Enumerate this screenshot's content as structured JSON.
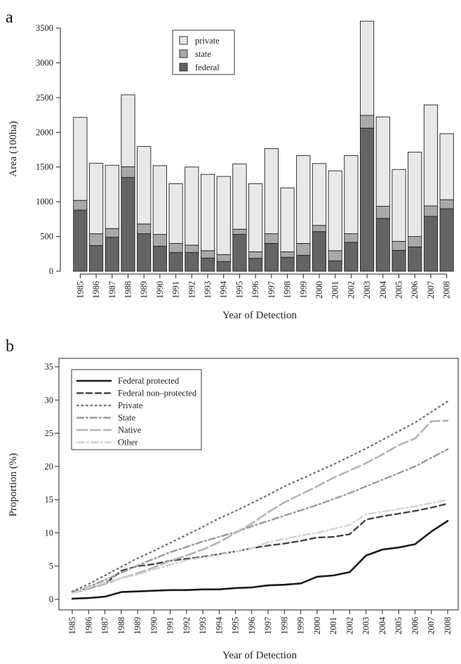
{
  "chart_data": [
    {
      "type": "bar",
      "stacked": true,
      "panel_label": "a",
      "xlabel": "Year of Detection",
      "ylabel": "Area (100ha)",
      "ylim": [
        0,
        3600
      ],
      "yticks": [
        0,
        500,
        1000,
        1500,
        2000,
        2500,
        3000,
        3500
      ],
      "categories": [
        "1985",
        "1986",
        "1987",
        "1988",
        "1989",
        "1990",
        "1991",
        "1992",
        "1993",
        "1994",
        "1995",
        "1996",
        "1997",
        "1998",
        "1999",
        "2000",
        "2001",
        "2002",
        "2003",
        "2004",
        "2005",
        "2006",
        "2007",
        "2008"
      ],
      "series": [
        {
          "name": "federal",
          "color": "#646464",
          "values": [
            880,
            370,
            490,
            1350,
            540,
            360,
            270,
            270,
            190,
            140,
            530,
            185,
            400,
            200,
            230,
            570,
            150,
            415,
            2060,
            760,
            300,
            350,
            790,
            900
          ]
        },
        {
          "name": "state",
          "color": "#a9a9a9",
          "values": [
            140,
            170,
            125,
            155,
            140,
            170,
            130,
            105,
            105,
            100,
            75,
            95,
            140,
            80,
            170,
            90,
            145,
            125,
            185,
            175,
            130,
            150,
            150,
            130
          ]
        },
        {
          "name": "private",
          "color": "#e8e8e8",
          "values": [
            1195,
            1015,
            910,
            1035,
            1115,
            990,
            860,
            1125,
            1100,
            1125,
            940,
            980,
            1225,
            920,
            1265,
            890,
            1150,
            1125,
            1355,
            1285,
            1035,
            1215,
            1455,
            950
          ]
        }
      ],
      "legend": {
        "placement": "top-center",
        "order": [
          "private",
          "state",
          "federal"
        ]
      }
    },
    {
      "type": "line",
      "panel_label": "b",
      "xlabel": "Year of Detection",
      "ylabel": "Proportion (%)",
      "ylim": [
        0,
        35
      ],
      "yticks": [
        0,
        5,
        10,
        15,
        20,
        25,
        30,
        35
      ],
      "x": [
        "1985",
        "1986",
        "1987",
        "1988",
        "1989",
        "1990",
        "1991",
        "1992",
        "1993",
        "1994",
        "1995",
        "1996",
        "1997",
        "1998",
        "1999",
        "2000",
        "2001",
        "2002",
        "2003",
        "2004",
        "2005",
        "2006",
        "2007",
        "2008"
      ],
      "series": [
        {
          "name": "Federal protected",
          "color": "#1a1a1a",
          "dash": "",
          "width": 2.6,
          "values": [
            0.1,
            0.2,
            0.4,
            1.1,
            1.2,
            1.3,
            1.4,
            1.4,
            1.5,
            1.5,
            1.7,
            1.8,
            2.1,
            2.2,
            2.4,
            3.4,
            3.6,
            4.1,
            6.6,
            7.5,
            7.8,
            8.3,
            10.2,
            11.8
          ]
        },
        {
          "name": "Federal non–protected",
          "color": "#444444",
          "dash": "8,5",
          "width": 2.4,
          "values": [
            1.1,
            1.7,
            2.3,
            4.3,
            5.0,
            5.3,
            5.8,
            6.1,
            6.4,
            6.8,
            7.2,
            7.7,
            8.1,
            8.4,
            8.8,
            9.3,
            9.4,
            9.8,
            12.0,
            12.5,
            12.9,
            13.3,
            13.8,
            14.4
          ]
        },
        {
          "name": "Private",
          "color": "#777777",
          "dash": "1.5,5",
          "width": 2.4,
          "values": [
            1.2,
            2.3,
            3.6,
            4.9,
            6.2,
            7.3,
            8.5,
            9.7,
            10.9,
            12.2,
            13.3,
            14.5,
            15.7,
            17.0,
            18.1,
            19.2,
            20.3,
            21.5,
            22.7,
            24.0,
            25.3,
            26.6,
            28.2,
            29.8
          ]
        },
        {
          "name": "State",
          "color": "#999999",
          "dash": "9,4,2,4",
          "width": 2.4,
          "values": [
            1.0,
            1.9,
            2.9,
            4.0,
            5.1,
            6.1,
            7.1,
            7.9,
            8.7,
            9.4,
            10.1,
            11.0,
            11.8,
            12.6,
            13.4,
            14.2,
            15.1,
            16.0,
            17.0,
            18.0,
            19.0,
            20.0,
            21.3,
            22.6
          ]
        },
        {
          "name": "Native",
          "color": "#b4b4b4",
          "dash": "14,5",
          "width": 2.6,
          "values": [
            0.9,
            1.6,
            2.3,
            3.2,
            3.9,
            4.8,
            5.8,
            6.6,
            7.5,
            8.6,
            10.0,
            11.4,
            13.1,
            14.6,
            15.8,
            17.0,
            18.3,
            19.4,
            20.5,
            21.8,
            23.2,
            24.2,
            26.8,
            26.9
          ]
        },
        {
          "name": "Other",
          "color": "#d4d4d4",
          "dash": "10,4,2,4",
          "width": 2.4,
          "values": [
            0.9,
            1.8,
            2.5,
            3.2,
            3.7,
            4.5,
            5.2,
            5.9,
            6.3,
            6.7,
            7.2,
            7.7,
            8.6,
            9.1,
            9.6,
            10.0,
            10.6,
            11.2,
            12.8,
            13.2,
            13.6,
            14.0,
            14.5,
            15.0
          ]
        }
      ],
      "legend": {
        "placement": "top-left"
      }
    }
  ]
}
